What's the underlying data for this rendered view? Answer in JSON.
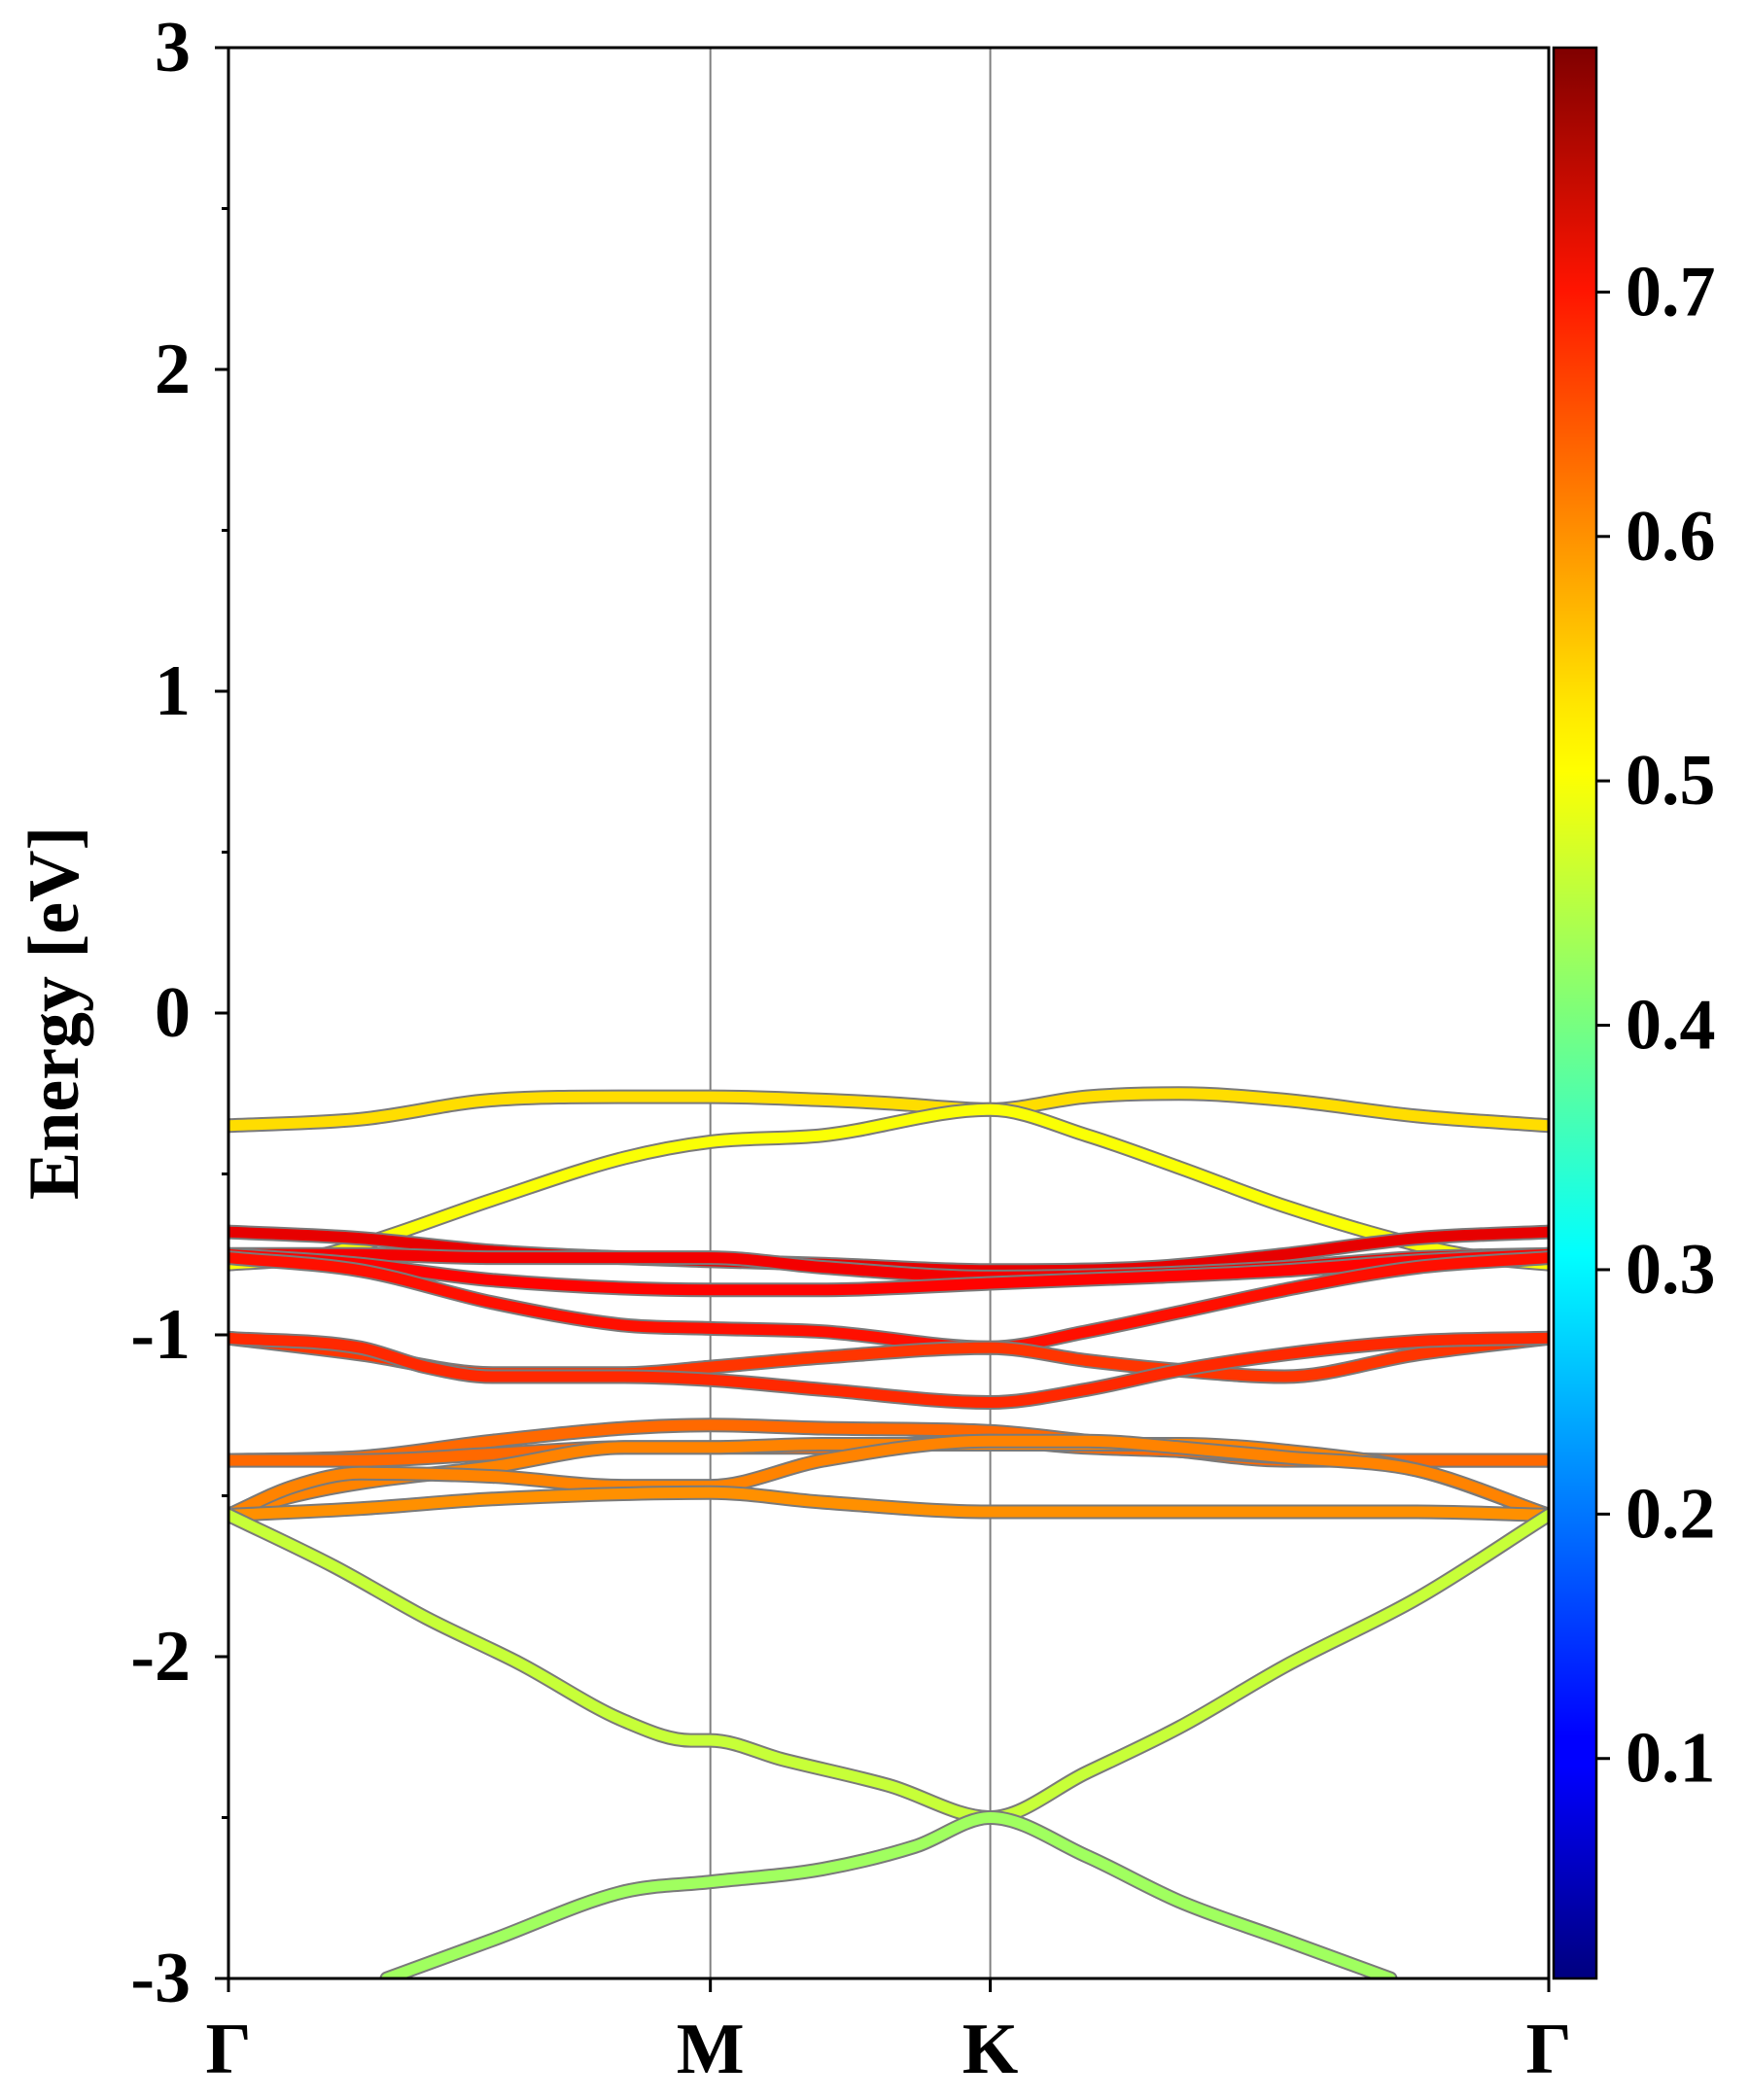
{
  "chart_data": {
    "type": "line",
    "chart_kind": "electronic band structure with projected weight colormap",
    "title": "",
    "xlabel": "",
    "ylabel": "Energy [eV]",
    "ylim": [
      -3,
      3
    ],
    "yticks": [
      -3,
      -2,
      -1,
      0,
      1,
      2,
      3
    ],
    "yticklabels": [
      "-3",
      "-2",
      "-1",
      "0",
      "1",
      "2",
      "3"
    ],
    "x_range": [
      0,
      1
    ],
    "kpath": [
      {
        "label": "Γ",
        "x": 0.0
      },
      {
        "label": "M",
        "x": 0.365
      },
      {
        "label": "K",
        "x": 0.577
      },
      {
        "label": "Γ",
        "x": 1.0
      }
    ],
    "grid": false,
    "colorbar": {
      "colormap": "jet",
      "range": [
        0.01,
        0.8
      ],
      "ticks": [
        0.1,
        0.2,
        0.3,
        0.4,
        0.5,
        0.6,
        0.7
      ],
      "ticklabels": [
        "0.1",
        "0.2",
        "0.3",
        "0.4",
        "0.5",
        "0.6",
        "0.7"
      ]
    },
    "series": [
      {
        "points": [
          [
            0,
            -0.35
          ],
          [
            0.1,
            -0.33
          ],
          [
            0.2,
            -0.27
          ],
          [
            0.3,
            -0.26
          ],
          [
            0.365,
            -0.26
          ],
          [
            0.45,
            -0.27
          ],
          [
            0.5,
            -0.28
          ],
          [
            0.577,
            -0.3
          ],
          [
            0.65,
            -0.26
          ],
          [
            0.72,
            -0.25
          ],
          [
            0.8,
            -0.27
          ],
          [
            0.9,
            -0.32
          ],
          [
            1,
            -0.35
          ]
        ],
        "weight": 0.53
      },
      {
        "points": [
          [
            0,
            -0.78
          ],
          [
            0.06,
            -0.76
          ],
          [
            0.1,
            -0.72
          ],
          [
            0.2,
            -0.58
          ],
          [
            0.3,
            -0.45
          ],
          [
            0.365,
            -0.4
          ],
          [
            0.45,
            -0.38
          ],
          [
            0.577,
            -0.3
          ],
          [
            0.65,
            -0.38
          ],
          [
            0.72,
            -0.48
          ],
          [
            0.8,
            -0.6
          ],
          [
            0.9,
            -0.72
          ],
          [
            0.95,
            -0.76
          ],
          [
            1,
            -0.78
          ]
        ],
        "weight": 0.5
      },
      {
        "points": [
          [
            0,
            -0.68
          ],
          [
            0.1,
            -0.7
          ],
          [
            0.2,
            -0.74
          ],
          [
            0.365,
            -0.77
          ],
          [
            0.45,
            -0.78
          ],
          [
            0.577,
            -0.8
          ],
          [
            0.7,
            -0.79
          ],
          [
            0.8,
            -0.75
          ],
          [
            0.9,
            -0.7
          ],
          [
            1,
            -0.68
          ]
        ],
        "weight": 0.72
      },
      {
        "points": [
          [
            0,
            -0.75
          ],
          [
            0.1,
            -0.75
          ],
          [
            0.2,
            -0.76
          ],
          [
            0.365,
            -0.76
          ],
          [
            0.45,
            -0.79
          ],
          [
            0.577,
            -0.82
          ],
          [
            0.7,
            -0.81
          ],
          [
            0.8,
            -0.79
          ],
          [
            0.9,
            -0.76
          ],
          [
            1,
            -0.75
          ]
        ],
        "weight": 0.71
      },
      {
        "points": [
          [
            0,
            -0.75
          ],
          [
            0.1,
            -0.78
          ],
          [
            0.2,
            -0.83
          ],
          [
            0.365,
            -0.86
          ],
          [
            0.45,
            -0.86
          ],
          [
            0.577,
            -0.84
          ],
          [
            0.7,
            -0.82
          ],
          [
            0.8,
            -0.8
          ],
          [
            0.9,
            -0.77
          ],
          [
            1,
            -0.75
          ]
        ],
        "weight": 0.7
      },
      {
        "points": [
          [
            0,
            -0.76
          ],
          [
            0.1,
            -0.8
          ],
          [
            0.2,
            -0.9
          ],
          [
            0.3,
            -0.97
          ],
          [
            0.365,
            -0.98
          ],
          [
            0.45,
            -0.99
          ],
          [
            0.577,
            -1.04
          ],
          [
            0.65,
            -0.99
          ],
          [
            0.72,
            -0.93
          ],
          [
            0.8,
            -0.86
          ],
          [
            0.9,
            -0.79
          ],
          [
            1,
            -0.76
          ]
        ],
        "weight": 0.69
      },
      {
        "points": [
          [
            0,
            -1.01
          ],
          [
            0.1,
            -1.06
          ],
          [
            0.2,
            -1.12
          ],
          [
            0.3,
            -1.12
          ],
          [
            0.365,
            -1.1
          ],
          [
            0.45,
            -1.07
          ],
          [
            0.577,
            -1.04
          ],
          [
            0.65,
            -1.08
          ],
          [
            0.72,
            -1.11
          ],
          [
            0.8,
            -1.13
          ],
          [
            0.9,
            -1.06
          ],
          [
            1,
            -1.01
          ]
        ],
        "weight": 0.66
      },
      {
        "points": [
          [
            0,
            -1.01
          ],
          [
            0.1,
            -1.04
          ],
          [
            0.15,
            -1.1
          ],
          [
            0.2,
            -1.13
          ],
          [
            0.3,
            -1.13
          ],
          [
            0.365,
            -1.14
          ],
          [
            0.45,
            -1.17
          ],
          [
            0.577,
            -1.21
          ],
          [
            0.65,
            -1.17
          ],
          [
            0.72,
            -1.11
          ],
          [
            0.8,
            -1.06
          ],
          [
            0.9,
            -1.02
          ],
          [
            1,
            -1.01
          ]
        ],
        "weight": 0.67
      },
      {
        "points": [
          [
            0,
            -1.39
          ],
          [
            0.1,
            -1.38
          ],
          [
            0.2,
            -1.33
          ],
          [
            0.3,
            -1.29
          ],
          [
            0.365,
            -1.28
          ],
          [
            0.45,
            -1.29
          ],
          [
            0.577,
            -1.3
          ],
          [
            0.65,
            -1.33
          ],
          [
            0.72,
            -1.36
          ],
          [
            0.8,
            -1.39
          ],
          [
            0.9,
            -1.39
          ],
          [
            1,
            -1.39
          ]
        ],
        "weight": 0.62
      },
      {
        "points": [
          [
            0,
            -1.39
          ],
          [
            0.1,
            -1.39
          ],
          [
            0.2,
            -1.37
          ],
          [
            0.3,
            -1.35
          ],
          [
            0.365,
            -1.35
          ],
          [
            0.45,
            -1.35
          ],
          [
            0.577,
            -1.33
          ],
          [
            0.65,
            -1.35
          ],
          [
            0.72,
            -1.36
          ],
          [
            0.8,
            -1.38
          ],
          [
            0.9,
            -1.39
          ],
          [
            1,
            -1.39
          ]
        ],
        "weight": 0.62
      },
      {
        "points": [
          [
            0,
            -1.56
          ],
          [
            0.05,
            -1.5
          ],
          [
            0.1,
            -1.46
          ],
          [
            0.2,
            -1.41
          ],
          [
            0.3,
            -1.35
          ],
          [
            0.365,
            -1.35
          ],
          [
            0.45,
            -1.34
          ],
          [
            0.577,
            -1.34
          ],
          [
            0.65,
            -1.34
          ],
          [
            0.72,
            -1.34
          ],
          [
            0.8,
            -1.36
          ],
          [
            0.9,
            -1.42
          ],
          [
            1,
            -1.56
          ]
        ],
        "weight": 0.6
      },
      {
        "points": [
          [
            0,
            -1.56
          ],
          [
            0.05,
            -1.47
          ],
          [
            0.1,
            -1.43
          ],
          [
            0.2,
            -1.44
          ],
          [
            0.3,
            -1.47
          ],
          [
            0.365,
            -1.47
          ],
          [
            0.45,
            -1.39
          ],
          [
            0.577,
            -1.33
          ],
          [
            0.65,
            -1.33
          ],
          [
            0.72,
            -1.35
          ],
          [
            0.8,
            -1.38
          ],
          [
            0.9,
            -1.42
          ],
          [
            1,
            -1.56
          ]
        ],
        "weight": 0.6
      },
      {
        "points": [
          [
            0,
            -1.56
          ],
          [
            0.1,
            -1.54
          ],
          [
            0.2,
            -1.51
          ],
          [
            0.365,
            -1.49
          ],
          [
            0.45,
            -1.52
          ],
          [
            0.577,
            -1.55
          ],
          [
            0.7,
            -1.55
          ],
          [
            0.8,
            -1.55
          ],
          [
            0.9,
            -1.55
          ],
          [
            1,
            -1.56
          ]
        ],
        "weight": 0.59
      },
      {
        "points": [
          [
            0,
            -1.56
          ],
          [
            0.08,
            -1.72
          ],
          [
            0.15,
            -1.88
          ],
          [
            0.22,
            -2.02
          ],
          [
            0.3,
            -2.2
          ],
          [
            0.35,
            -2.26
          ],
          [
            0.365,
            -2.26
          ],
          [
            0.42,
            -2.32
          ],
          [
            0.5,
            -2.4
          ],
          [
            0.577,
            -2.5
          ],
          [
            0.65,
            -2.36
          ],
          [
            0.72,
            -2.22
          ],
          [
            0.8,
            -2.03
          ],
          [
            0.9,
            -1.82
          ],
          [
            1,
            -1.56
          ]
        ],
        "weight": 0.46
      },
      {
        "points": [
          [
            0.12,
            -3.0
          ],
          [
            0.2,
            -2.88
          ],
          [
            0.3,
            -2.73
          ],
          [
            0.365,
            -2.7
          ],
          [
            0.45,
            -2.66
          ],
          [
            0.52,
            -2.59
          ],
          [
            0.577,
            -2.5
          ],
          [
            0.65,
            -2.62
          ],
          [
            0.72,
            -2.76
          ],
          [
            0.8,
            -2.88
          ],
          [
            0.88,
            -3.0
          ]
        ],
        "weight": 0.43
      }
    ]
  }
}
